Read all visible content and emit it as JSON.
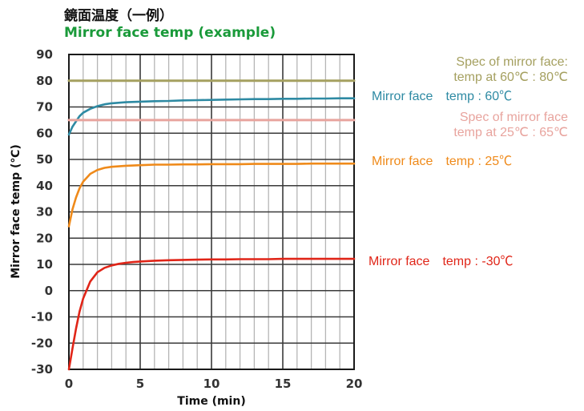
{
  "chart_data": {
    "type": "line",
    "title": "鏡面温度（一例）",
    "subtitle": "Mirror face temp (example)",
    "xlabel": "Time (min)",
    "ylabel": "Mirror face temp (℃)",
    "xlim": [
      0,
      20
    ],
    "ylim": [
      -30,
      90
    ],
    "x_ticks": [
      "0",
      "5",
      "10",
      "15",
      "20"
    ],
    "y_ticks": [
      "90",
      "80",
      "70",
      "60",
      "50",
      "40",
      "30",
      "20",
      "10",
      "0",
      "-10",
      "-20",
      "-30"
    ],
    "grid": true,
    "series": [
      {
        "name": "Mirror face temp : 60℃",
        "label_lines": [
          "Mirror face　temp : 60℃"
        ],
        "color": "#2e8aa3",
        "x": [
          0,
          0.25,
          0.5,
          0.75,
          1,
          1.5,
          2,
          2.5,
          3,
          4,
          5,
          6,
          7,
          8,
          9,
          10,
          11,
          12,
          13,
          14,
          15,
          16,
          17,
          18,
          19,
          20
        ],
        "y": [
          59.5,
          62.5,
          64.5,
          66.5,
          67.8,
          69.3,
          70.3,
          71,
          71.4,
          71.8,
          72,
          72.2,
          72.3,
          72.5,
          72.6,
          72.7,
          72.8,
          72.9,
          73,
          73,
          73.1,
          73.1,
          73.2,
          73.2,
          73.3,
          73.3
        ]
      },
      {
        "name": "Spec of mirror face: temp at 60℃ : 80℃",
        "label_lines": [
          "Spec of mirror face:",
          "temp at 60℃ : 80℃"
        ],
        "color": "#a5a060",
        "x": [
          0,
          20
        ],
        "y": [
          80,
          80
        ]
      },
      {
        "name": "Spec of mirror face temp at 25℃ : 65℃",
        "label_lines": [
          "Spec of mirror face",
          "temp at 25℃ : 65℃"
        ],
        "color": "#e8a49e",
        "x": [
          0,
          20
        ],
        "y": [
          65,
          65
        ]
      },
      {
        "name": "Mirror face temp : 25℃",
        "label_lines": [
          "Mirror face　temp : 25℃"
        ],
        "color": "#ef8a1a",
        "x": [
          0,
          0.25,
          0.5,
          0.75,
          1,
          1.5,
          2,
          2.5,
          3,
          4,
          5,
          6,
          7,
          8,
          9,
          10,
          11,
          12,
          13,
          14,
          15,
          16,
          17,
          18,
          19,
          20
        ],
        "y": [
          24.5,
          31,
          35.5,
          39,
          41.5,
          44.5,
          46,
          46.8,
          47.2,
          47.6,
          47.8,
          48,
          48,
          48.1,
          48.1,
          48.2,
          48.2,
          48.2,
          48.3,
          48.3,
          48.3,
          48.3,
          48.4,
          48.4,
          48.4,
          48.4
        ]
      },
      {
        "name": "Mirror face temp : -30℃",
        "label_lines": [
          "Mirror face　temp : -30℃"
        ],
        "color": "#e02518",
        "x": [
          0,
          0.25,
          0.5,
          0.75,
          1,
          1.5,
          2,
          2.5,
          3,
          3.5,
          4,
          4.5,
          5,
          6,
          7,
          8,
          9,
          10,
          11,
          12,
          13,
          14,
          15,
          16,
          17,
          18,
          19,
          20
        ],
        "y": [
          -30,
          -22,
          -14.5,
          -8,
          -3,
          3.5,
          7,
          8.7,
          9.6,
          10.2,
          10.6,
          10.9,
          11.1,
          11.4,
          11.6,
          11.7,
          11.8,
          11.9,
          11.9,
          12,
          12,
          12,
          12.1,
          12.1,
          12.1,
          12.1,
          12.1,
          12.1
        ]
      }
    ]
  },
  "colors": {
    "title_en": "#1a9a3a",
    "grid_major": "#3a3a3a",
    "grid_minor": "#b5b5b5"
  }
}
